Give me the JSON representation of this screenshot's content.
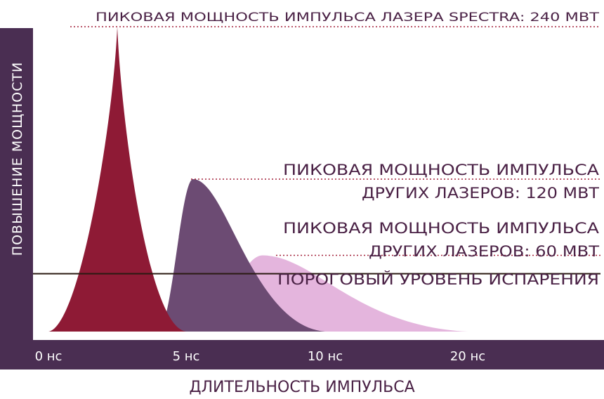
{
  "chart_data": {
    "type": "area",
    "ylabel": "ПОВЫШЕНИЕ МОЩНОСТИ",
    "xlabel": "ДЛИТЕЛЬНОСТЬ ИМПУЛЬСА",
    "x_ticks": [
      "0 нс",
      "5 нс",
      "10 нс",
      "20 нс"
    ],
    "grid": false,
    "annotations": {
      "spectra_peak": "ПИКОВАЯ МОЩНОСТЬ ИМПУЛЬСА ЛАЗЕРА SPECTRA: 240 МВТ",
      "other_120_line1": "ПИКОВАЯ МОЩНОСТЬ ИМПУЛЬСА",
      "other_120_line2": "ДРУГИХ ЛАЗЕРОВ: 120 МВТ",
      "other_60_line1": "ПИКОВАЯ МОЩНОСТЬ ИМПУЛЬСА",
      "other_60_line2": "ДРУГИХ ЛАЗЕРОВ: 60 МВТ",
      "threshold": "ПОРОГОВЫЙ УРОВЕНЬ ИСПАРЕНИЯ"
    },
    "series": [
      {
        "peak_mw": 240,
        "start_tick": 0,
        "peak_tick": 0.5,
        "end_tick": 1,
        "color": "#8e1a35"
      },
      {
        "peak_mw": 120,
        "start_tick": 0.8,
        "peak_tick": 1.05,
        "end_tick": 2,
        "color": "#6c4b73"
      },
      {
        "peak_mw": 60,
        "start_tick": 1.1,
        "peak_tick": 1.55,
        "end_tick": 3,
        "color": "#e4b5dd"
      }
    ],
    "threshold_mw": 50,
    "colors": {
      "axis_band": "#4a2e52",
      "threshold_line": "#2a1a12",
      "dotted_line": "#a3213a",
      "text": "#4a2145"
    }
  }
}
